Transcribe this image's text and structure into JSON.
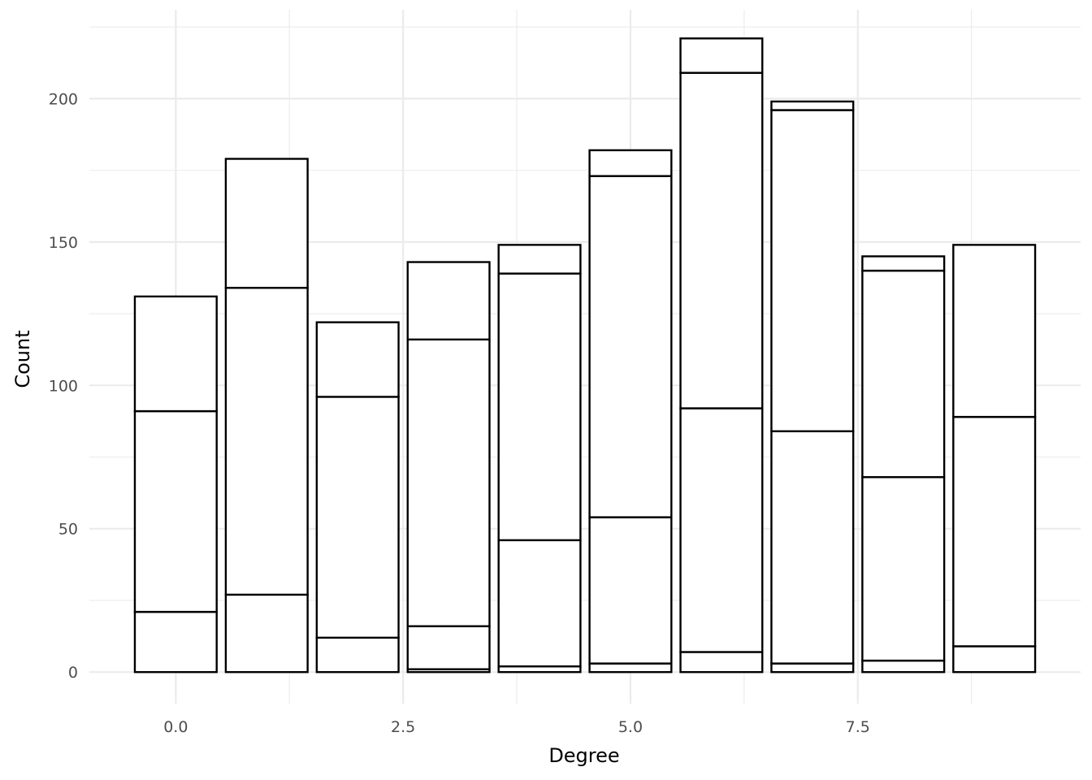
{
  "chart_data": {
    "type": "bar",
    "stacked": true,
    "xlabel": "Degree",
    "ylabel": "Count",
    "xlim": [
      -0.95,
      9.95
    ],
    "ylim": [
      -11,
      231
    ],
    "x_ticks": [
      0.0,
      2.5,
      5.0,
      7.5
    ],
    "x_tick_labels": [
      "0.0",
      "2.5",
      "5.0",
      "7.5"
    ],
    "y_ticks": [
      0,
      50,
      100,
      150,
      200
    ],
    "y_tick_labels": [
      "0",
      "50",
      "100",
      "150",
      "200"
    ],
    "grid": true,
    "bar_fill": "#ffffff",
    "bar_stroke": "#000000",
    "categories": [
      0,
      1,
      2,
      3,
      4,
      5,
      6,
      7,
      8,
      9
    ],
    "stack_boundaries": [
      [
        0,
        21,
        91,
        131
      ],
      [
        0,
        27,
        134,
        179
      ],
      [
        0,
        12,
        96,
        122
      ],
      [
        0,
        1,
        16,
        116,
        143
      ],
      [
        0,
        2,
        46,
        139,
        149
      ],
      [
        0,
        3,
        54,
        173,
        182
      ],
      [
        0,
        7,
        92,
        209,
        221
      ],
      [
        0,
        3,
        84,
        196,
        199
      ],
      [
        0,
        4,
        68,
        140,
        145
      ],
      [
        0,
        9,
        89,
        149
      ]
    ]
  }
}
